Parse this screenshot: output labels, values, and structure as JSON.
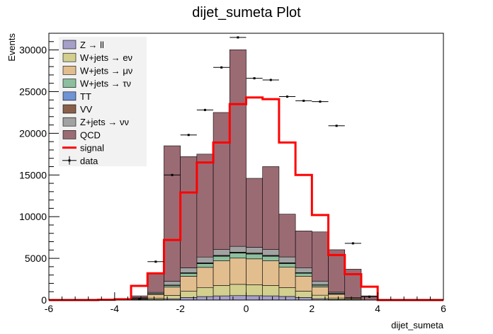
{
  "chart_data": {
    "type": "bar",
    "title": "dijet_sumeta Plot",
    "xlabel": "dijet_sumeta",
    "ylabel": "Events",
    "xlim": [
      -6,
      6
    ],
    "ylim": [
      0,
      32000
    ],
    "bin_edges": [
      -6.0,
      -5.5,
      -5.0,
      -4.5,
      -4.0,
      -3.5,
      -3.0,
      -2.5,
      -2.0,
      -1.5,
      -1.0,
      -0.5,
      0.0,
      0.5,
      1.0,
      1.5,
      2.0,
      2.5,
      3.0,
      3.5,
      4.0,
      4.5,
      5.0,
      5.5,
      6.0
    ],
    "x_ticks": [
      {
        "v": -6,
        "label": "-6"
      },
      {
        "v": -4,
        "label": "-4"
      },
      {
        "v": -2,
        "label": "-2"
      },
      {
        "v": 0,
        "label": "0"
      },
      {
        "v": 2,
        "label": "2"
      },
      {
        "v": 4,
        "label": "4"
      },
      {
        "v": 6,
        "label": "6"
      }
    ],
    "y_ticks": [
      {
        "v": 0,
        "label": "0"
      },
      {
        "v": 5000,
        "label": "5000"
      },
      {
        "v": 10000,
        "label": "10000"
      },
      {
        "v": 15000,
        "label": "15000"
      },
      {
        "v": 20000,
        "label": "20000"
      },
      {
        "v": 25000,
        "label": "25000"
      },
      {
        "v": 30000,
        "label": "30000"
      }
    ],
    "legend_position": "top-left",
    "stack": [
      {
        "name": "Z → ll",
        "color": "#a59fc9",
        "values": [
          0,
          0,
          0,
          0,
          0,
          20,
          60,
          150,
          300,
          420,
          500,
          530,
          520,
          500,
          430,
          310,
          160,
          70,
          20,
          0,
          0,
          0,
          0,
          0
        ]
      },
      {
        "name": "W+jets → eν",
        "color": "#d3cf8f",
        "values": [
          0,
          0,
          0,
          0,
          0,
          50,
          160,
          400,
          750,
          1050,
          1250,
          1350,
          1320,
          1250,
          1050,
          750,
          420,
          170,
          50,
          0,
          0,
          0,
          0,
          0
        ]
      },
      {
        "name": "W+jets → μν",
        "color": "#e2be8e",
        "values": [
          0,
          0,
          0,
          0,
          0,
          130,
          450,
          1000,
          1800,
          2450,
          2950,
          3150,
          3100,
          2950,
          2450,
          1800,
          1000,
          450,
          130,
          0,
          0,
          0,
          0,
          0
        ]
      },
      {
        "name": "W+jets → τν",
        "color": "#8dbf9e",
        "values": [
          0,
          0,
          0,
          0,
          0,
          20,
          80,
          200,
          350,
          450,
          550,
          600,
          580,
          550,
          450,
          350,
          200,
          80,
          20,
          0,
          0,
          0,
          0,
          0
        ]
      },
      {
        "name": "TT",
        "color": "#6f93d4",
        "values": [
          0,
          0,
          0,
          0,
          0,
          2,
          8,
          15,
          25,
          30,
          35,
          35,
          35,
          35,
          30,
          25,
          15,
          8,
          2,
          0,
          0,
          0,
          0,
          0
        ]
      },
      {
        "name": "VV",
        "color": "#8a5f4a",
        "values": [
          0,
          0,
          0,
          0,
          0,
          8,
          15,
          25,
          45,
          60,
          70,
          75,
          75,
          70,
          60,
          45,
          25,
          15,
          8,
          0,
          0,
          0,
          0,
          0
        ]
      },
      {
        "name": "Z+jets → νν",
        "color": "#a2a2a2",
        "values": [
          0,
          0,
          0,
          0,
          0,
          40,
          150,
          450,
          600,
          700,
          700,
          700,
          700,
          700,
          700,
          600,
          450,
          150,
          40,
          0,
          0,
          0,
          0,
          0
        ]
      },
      {
        "name": "QCD",
        "color": "#9b6b74",
        "values": [
          0,
          0,
          0,
          0,
          0,
          230,
          2300,
          16260,
          13330,
          12340,
          16440,
          23580,
          8270,
          9950,
          5130,
          4410,
          5900,
          5090,
          3430,
          500,
          0,
          0,
          0,
          0
        ]
      }
    ],
    "signal": {
      "name": "signal",
      "color": "#ff0000",
      "values": [
        0,
        0,
        0,
        30,
        100,
        1700,
        3200,
        7200,
        12900,
        16500,
        18900,
        23500,
        24300,
        24100,
        18900,
        15000,
        10200,
        5400,
        3100,
        1600,
        0,
        0,
        0,
        0
      ]
    },
    "data": {
      "name": "data",
      "values": [
        0,
        0,
        0,
        0,
        0,
        80,
        4600,
        15000,
        19800,
        22800,
        27900,
        31500,
        26600,
        26400,
        24400,
        23900,
        23800,
        20900,
        6800,
        400,
        0,
        0,
        0,
        0
      ]
    }
  }
}
